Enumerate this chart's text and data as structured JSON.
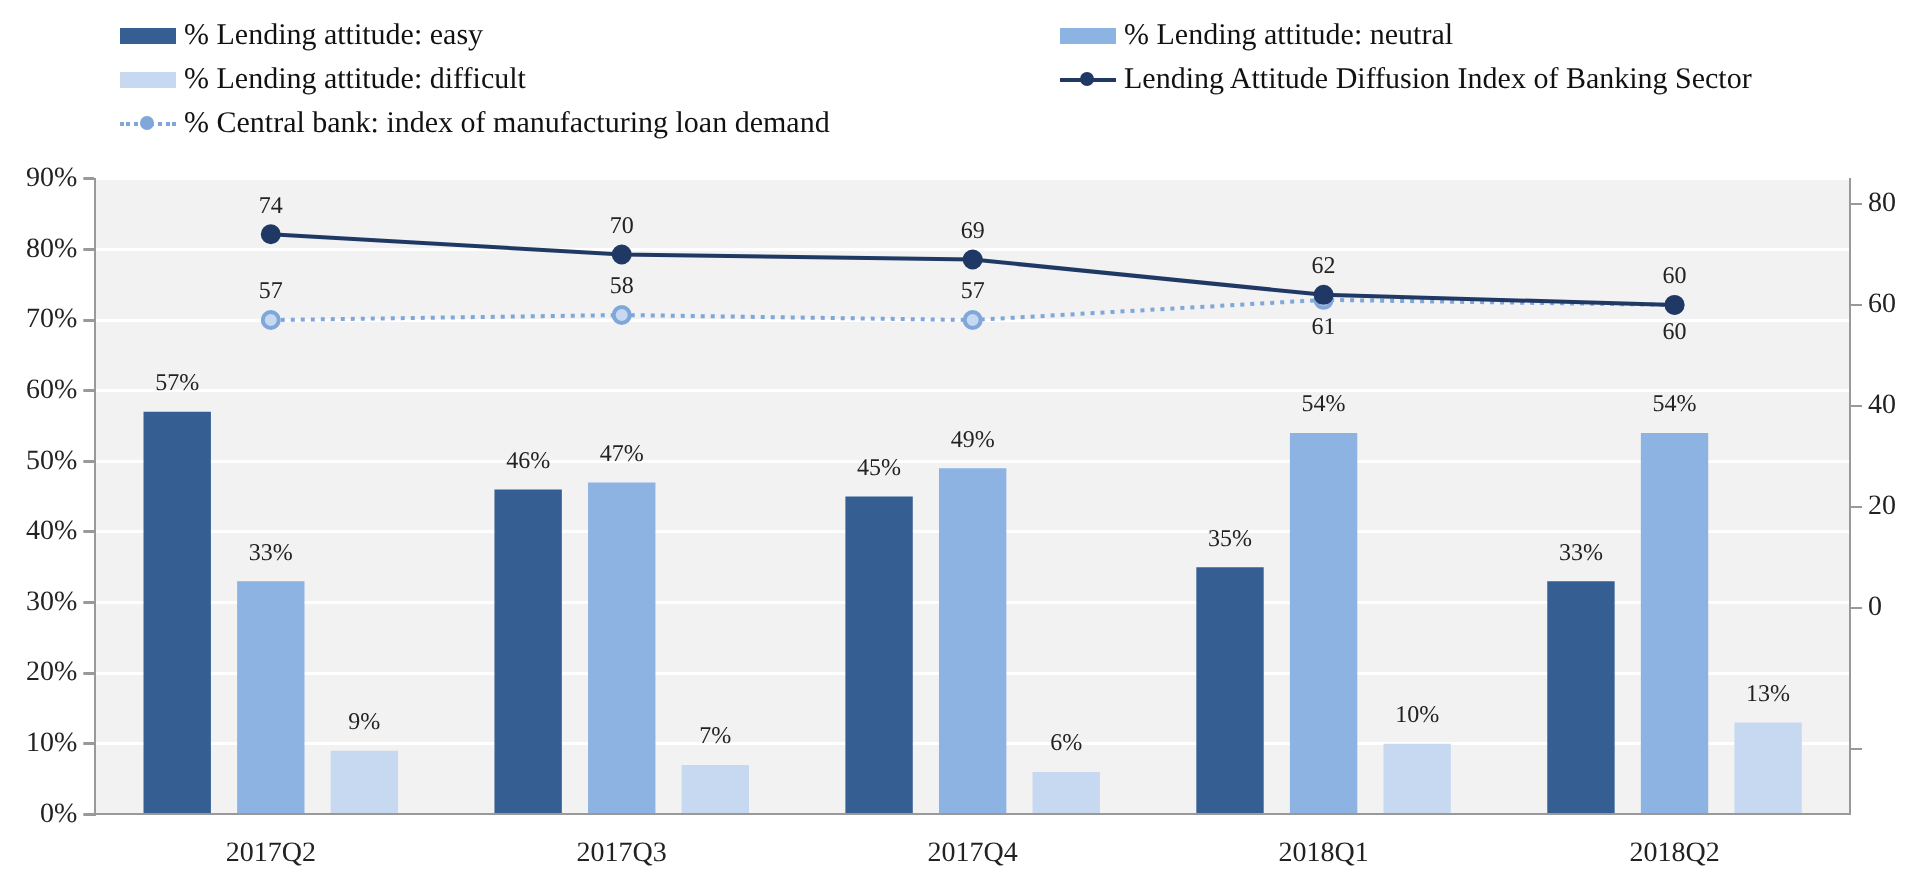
{
  "chart_data": {
    "type": "bar",
    "categories": [
      "2017Q2",
      "2017Q3",
      "2017Q4",
      "2018Q1",
      "2018Q2"
    ],
    "series": [
      {
        "name": "% Lending attitude: easy",
        "color": "#355e93",
        "values": [
          57,
          46,
          45,
          35,
          33
        ],
        "value_labels": [
          "57%",
          "46%",
          "45%",
          "35%",
          "33%"
        ]
      },
      {
        "name": "% Lending attitude: neutral",
        "color": "#8db3e2",
        "values": [
          33,
          47,
          49,
          54,
          54
        ],
        "value_labels": [
          "33%",
          "47%",
          "49%",
          "54%",
          "54%"
        ]
      },
      {
        "name": "% Lending attitude: difficult",
        "color": "#c6d9f0",
        "values": [
          9,
          7,
          6,
          10,
          13
        ],
        "value_labels": [
          "9%",
          "7%",
          "6%",
          "10%",
          "13%"
        ]
      },
      {
        "name": "Lending Attitude Diffusion Index of Banking Sector",
        "type": "line",
        "axis": "y2",
        "color": "#1f3864",
        "marker": "circle",
        "line_style": "solid",
        "values": [
          74,
          70,
          69,
          62,
          60
        ],
        "value_labels": [
          "74",
          "70",
          "69",
          "62",
          "60"
        ]
      },
      {
        "name": "% Central bank: index of manufacturing loan demand",
        "type": "line",
        "axis": "y2",
        "color": "#7fa7d9",
        "marker": "circle",
        "line_style": "dotted",
        "values": [
          57,
          58,
          57,
          61,
          60
        ],
        "value_labels": [
          "57",
          "58",
          "57",
          "61",
          "60"
        ]
      }
    ],
    "ylim": [
      0,
      90
    ],
    "yticks": [
      {
        "value": 0,
        "label": "0%"
      },
      {
        "value": 10,
        "label": "10%"
      },
      {
        "value": 20,
        "label": "20%"
      },
      {
        "value": 30,
        "label": "30%"
      },
      {
        "value": 40,
        "label": "40%"
      },
      {
        "value": 50,
        "label": "50%"
      },
      {
        "value": 60,
        "label": "60%"
      },
      {
        "value": 70,
        "label": "70%"
      },
      {
        "value": 80,
        "label": "80%"
      },
      {
        "value": 90,
        "label": "90%"
      }
    ],
    "y2lim": [
      -41,
      85
    ],
    "y2ticks": [
      {
        "value": -28,
        "label": null
      },
      0,
      20,
      40,
      60,
      80
    ],
    "grid": "y",
    "legend": "top"
  }
}
